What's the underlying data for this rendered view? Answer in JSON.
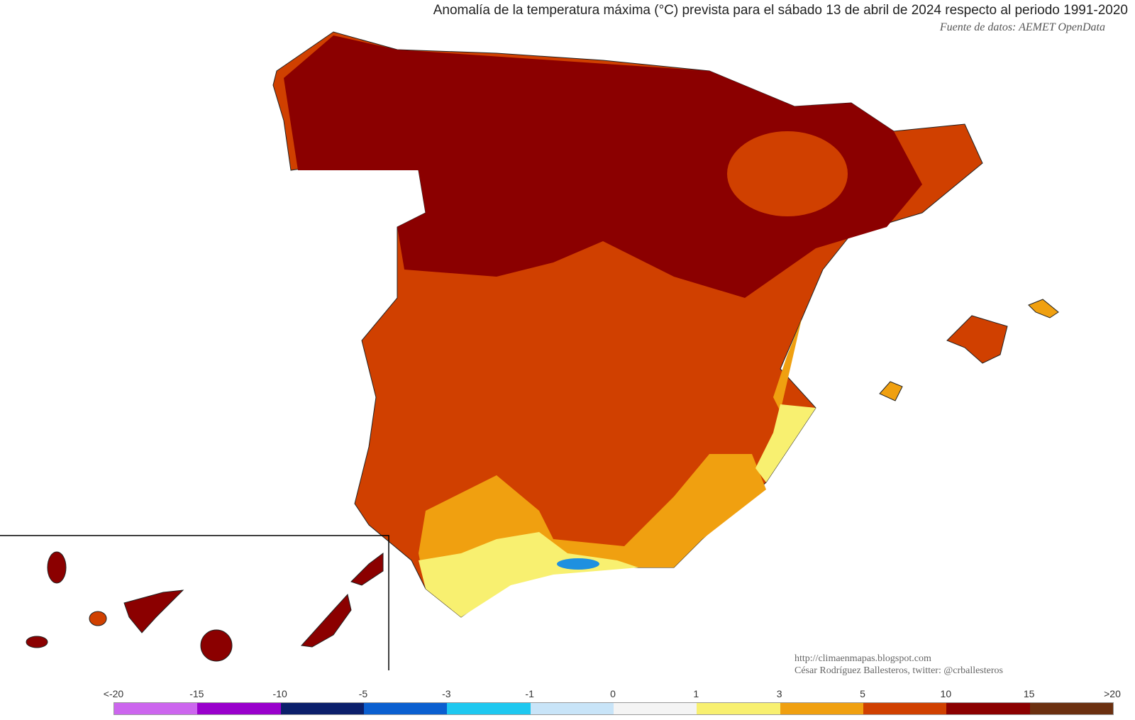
{
  "title": "Anomalía de la temperatura máxima (°C) prevista para el sábado 13 de abril de 2024 respecto al periodo 1991-2020",
  "source": "Fuente de datos: AEMET OpenData",
  "credits": {
    "url": "http://climaenmapas.blogspot.com",
    "author": "César Rodríguez Ballesteros, twitter: @crballesteros"
  },
  "legend": {
    "ticks": [
      "<-20",
      "-15",
      "-10",
      "-5",
      "-3",
      "-1",
      "0",
      "1",
      "3",
      "5",
      "10",
      "15",
      ">20"
    ],
    "colors": [
      "#cc66ee",
      "#9900cc",
      "#0b1f6b",
      "#0a5fd0",
      "#1ec8f0",
      "#c8e4f8",
      "#f4f4f4",
      "#f8f070",
      "#f0a010",
      "#d04000",
      "#8b0000",
      "#6b3010"
    ]
  },
  "map_colors": {
    "anomaly_5_10": "#d04000",
    "anomaly_10_15": "#8b0000",
    "anomaly_3_5": "#f0a010",
    "anomaly_1_3": "#f8f070",
    "anomaly_neg": "#1e90e0",
    "anomaly_over_15": "#6b3010"
  }
}
